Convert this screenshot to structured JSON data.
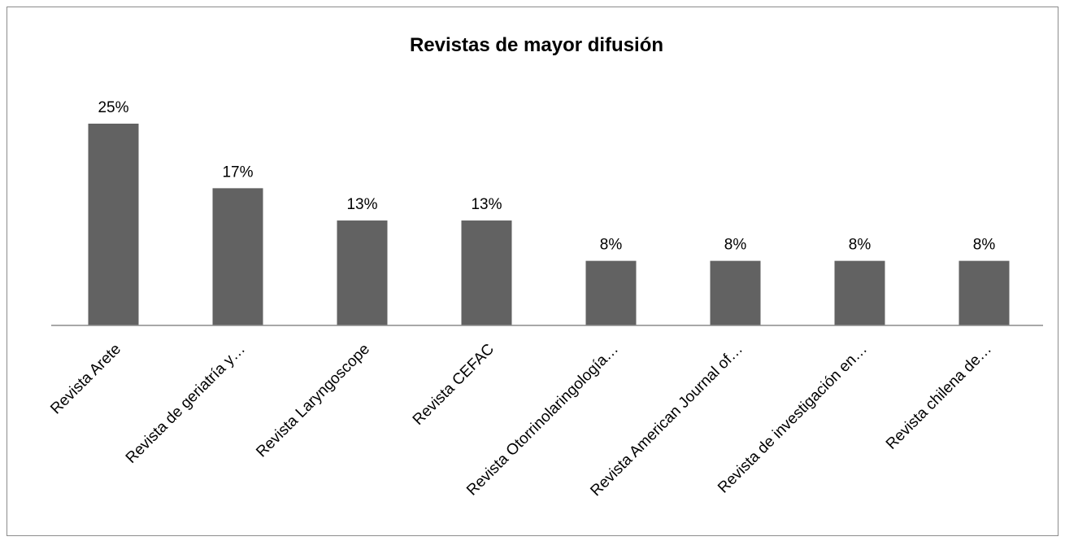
{
  "chart_data": {
    "type": "bar",
    "title": "Revistas de mayor difusión",
    "xlabel": "",
    "ylabel": "",
    "categories": [
      "Revista Arete",
      "Revista de geriatría y…",
      "Revista Laryngoscope",
      "Revista CEFAC",
      "Revista Otorrinolaringología…",
      "Revista American Journal of…",
      "Revista de investigación en…",
      "Revista chilena de…"
    ],
    "values": [
      25,
      17,
      13,
      13,
      8,
      8,
      8,
      8
    ],
    "value_labels": [
      "25%",
      "17%",
      "13%",
      "13%",
      "8%",
      "8%",
      "8%",
      "8%"
    ],
    "ylim": [
      0,
      25
    ],
    "grid": false,
    "legend": "none",
    "bar_color": "#626262"
  }
}
